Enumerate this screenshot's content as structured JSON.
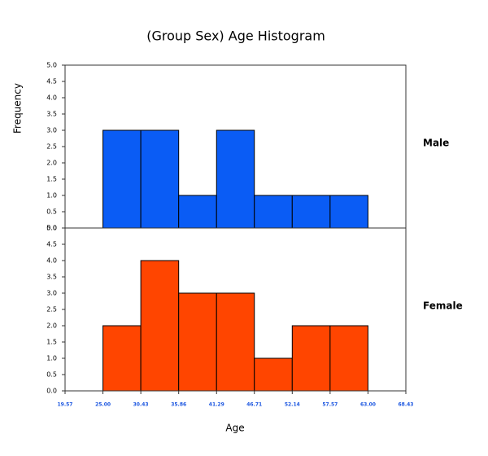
{
  "chart_data": {
    "type": "histogram",
    "title": "(Group Sex) Age Histogram",
    "xlabel": "Age",
    "ylabel": "Frequency",
    "bins": [
      25.0,
      30.43,
      35.86,
      41.29,
      46.71,
      52.14,
      57.57,
      63.0
    ],
    "series": [
      {
        "name": "Male",
        "color": "#0a5cf5",
        "values": [
          3,
          3,
          1,
          3,
          1,
          1,
          1
        ]
      },
      {
        "name": "Female",
        "color": "#ff4500",
        "values": [
          2,
          4,
          3,
          3,
          1,
          2,
          2
        ]
      }
    ],
    "xlim": [
      19.57,
      68.43
    ],
    "xticks": [
      19.57,
      {
        "value": 25,
        "label": "25.00"
      },
      30.43,
      35.86,
      41.29,
      46.71,
      52.14,
      57.57,
      {
        "value": 63,
        "label": "63.00"
      },
      68.43
    ],
    "ylim": [
      0,
      5
    ],
    "yticks": [
      {
        "value": 0,
        "label": "0.0"
      },
      0.5,
      {
        "value": 1,
        "label": "1.0"
      },
      1.5,
      {
        "value": 2,
        "label": "2.0"
      },
      2.5,
      {
        "value": 3,
        "label": "3.0"
      },
      3.5,
      {
        "value": 4,
        "label": "4.0"
      },
      4.5,
      {
        "value": 5,
        "label": "5.0"
      }
    ]
  }
}
